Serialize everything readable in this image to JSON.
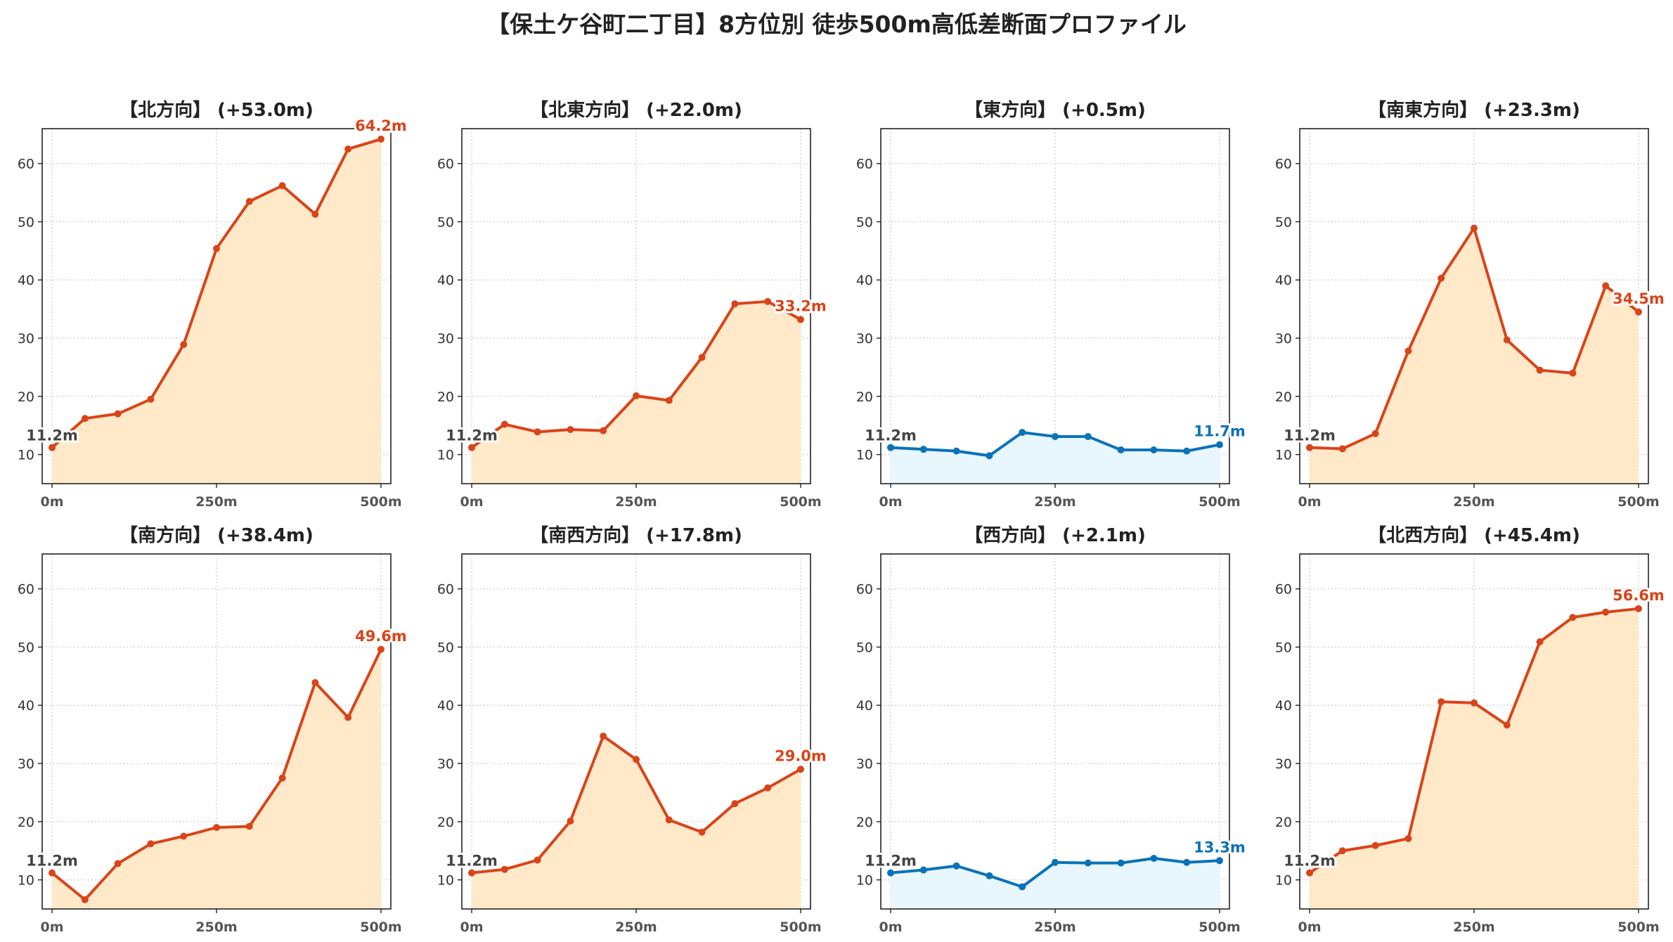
{
  "title": "【保土ケ谷町二丁目】8方位別 徒歩500m高低差断面プロファイル",
  "chart_data": [
    {
      "type": "area",
      "title": "【北方向】 (+53.0m)",
      "x": [
        0,
        50,
        100,
        150,
        200,
        250,
        300,
        350,
        400,
        450,
        500
      ],
      "xticks": [
        "0m",
        "250m",
        "500m"
      ],
      "yticks": [
        "10",
        "20",
        "30",
        "40",
        "50",
        "60"
      ],
      "ylim": [
        5,
        66
      ],
      "xlim": [
        -15,
        515
      ],
      "color": "#d9441a",
      "fill": "#ffe9c9",
      "values": [
        11.2,
        16.2,
        17.0,
        19.5,
        28.9,
        45.4,
        53.5,
        56.2,
        51.3,
        62.5,
        64.2
      ],
      "start_label": "11.2m",
      "end_label": "64.2m",
      "grid": true
    },
    {
      "type": "area",
      "title": "【北東方向】 (+22.0m)",
      "x": [
        0,
        50,
        100,
        150,
        200,
        250,
        300,
        350,
        400,
        450,
        500
      ],
      "xticks": [
        "0m",
        "250m",
        "500m"
      ],
      "yticks": [
        "10",
        "20",
        "30",
        "40",
        "50",
        "60"
      ],
      "ylim": [
        5,
        66
      ],
      "xlim": [
        -15,
        515
      ],
      "color": "#d9441a",
      "fill": "#ffe9c9",
      "values": [
        11.2,
        15.2,
        13.9,
        14.3,
        14.1,
        20.1,
        19.3,
        26.7,
        35.9,
        36.3,
        33.2
      ],
      "start_label": "11.2m",
      "end_label": "33.2m",
      "grid": true
    },
    {
      "type": "area",
      "title": "【東方向】 (+0.5m)",
      "x": [
        0,
        50,
        100,
        150,
        200,
        250,
        300,
        350,
        400,
        450,
        500
      ],
      "xticks": [
        "0m",
        "250m",
        "500m"
      ],
      "yticks": [
        "10",
        "20",
        "30",
        "40",
        "50",
        "60"
      ],
      "ylim": [
        5,
        66
      ],
      "xlim": [
        -15,
        515
      ],
      "color": "#0a72b8",
      "fill": "#e8f6fd",
      "values": [
        11.2,
        10.9,
        10.6,
        9.8,
        13.8,
        13.1,
        13.1,
        10.8,
        10.8,
        10.6,
        11.7
      ],
      "start_label": "11.2m",
      "end_label": "11.7m",
      "grid": true
    },
    {
      "type": "area",
      "title": "【南東方向】 (+23.3m)",
      "x": [
        0,
        50,
        100,
        150,
        200,
        250,
        300,
        350,
        400,
        450,
        500
      ],
      "xticks": [
        "0m",
        "250m",
        "500m"
      ],
      "yticks": [
        "10",
        "20",
        "30",
        "40",
        "50",
        "60"
      ],
      "ylim": [
        5,
        66
      ],
      "xlim": [
        -15,
        515
      ],
      "color": "#d9441a",
      "fill": "#ffe9c9",
      "values": [
        11.2,
        11.0,
        13.6,
        27.8,
        40.3,
        48.9,
        29.7,
        24.5,
        24.0,
        39.0,
        34.5
      ],
      "start_label": "11.2m",
      "end_label": "34.5m",
      "grid": true
    },
    {
      "type": "area",
      "title": "【南方向】 (+38.4m)",
      "x": [
        0,
        50,
        100,
        150,
        200,
        250,
        300,
        350,
        400,
        450,
        500
      ],
      "xticks": [
        "0m",
        "250m",
        "500m"
      ],
      "yticks": [
        "10",
        "20",
        "30",
        "40",
        "50",
        "60"
      ],
      "ylim": [
        5,
        66
      ],
      "xlim": [
        -15,
        515
      ],
      "color": "#d9441a",
      "fill": "#ffe9c9",
      "values": [
        11.2,
        6.6,
        12.8,
        16.2,
        17.5,
        19.0,
        19.2,
        27.5,
        43.9,
        37.9,
        49.6
      ],
      "start_label": "11.2m",
      "end_label": "49.6m",
      "grid": true
    },
    {
      "type": "area",
      "title": "【南西方向】 (+17.8m)",
      "x": [
        0,
        50,
        100,
        150,
        200,
        250,
        300,
        350,
        400,
        450,
        500
      ],
      "xticks": [
        "0m",
        "250m",
        "500m"
      ],
      "yticks": [
        "10",
        "20",
        "30",
        "40",
        "50",
        "60"
      ],
      "ylim": [
        5,
        66
      ],
      "xlim": [
        -15,
        515
      ],
      "color": "#d9441a",
      "fill": "#ffe9c9",
      "values": [
        11.2,
        11.8,
        13.4,
        20.1,
        34.7,
        30.7,
        20.3,
        18.2,
        23.1,
        25.8,
        29.0
      ],
      "start_label": "11.2m",
      "end_label": "29.0m",
      "grid": true
    },
    {
      "type": "area",
      "title": "【西方向】 (+2.1m)",
      "x": [
        0,
        50,
        100,
        150,
        200,
        250,
        300,
        350,
        400,
        450,
        500
      ],
      "xticks": [
        "0m",
        "250m",
        "500m"
      ],
      "yticks": [
        "10",
        "20",
        "30",
        "40",
        "50",
        "60"
      ],
      "ylim": [
        5,
        66
      ],
      "xlim": [
        -15,
        515
      ],
      "color": "#0a72b8",
      "fill": "#e8f6fd",
      "values": [
        11.2,
        11.7,
        12.4,
        10.7,
        8.8,
        13.0,
        12.9,
        12.9,
        13.7,
        13.0,
        13.3
      ],
      "start_label": "11.2m",
      "end_label": "13.3m",
      "grid": true
    },
    {
      "type": "area",
      "title": "【北西方向】 (+45.4m)",
      "x": [
        0,
        50,
        100,
        150,
        200,
        250,
        300,
        350,
        400,
        450,
        500
      ],
      "xticks": [
        "0m",
        "250m",
        "500m"
      ],
      "yticks": [
        "10",
        "20",
        "30",
        "40",
        "50",
        "60"
      ],
      "ylim": [
        5,
        66
      ],
      "xlim": [
        -15,
        515
      ],
      "color": "#d9441a",
      "fill": "#ffe9c9",
      "values": [
        11.2,
        15.0,
        15.9,
        17.1,
        40.6,
        40.4,
        36.6,
        50.9,
        55.1,
        56.0,
        56.6
      ],
      "start_label": "11.2m",
      "end_label": "56.6m",
      "grid": true
    }
  ]
}
